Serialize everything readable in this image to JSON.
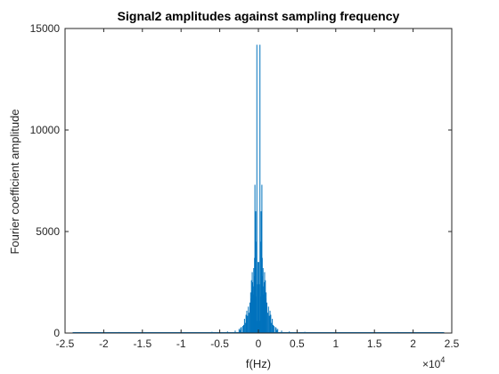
{
  "chart_data": {
    "type": "line",
    "title": "Signal2 amplitudes against sampling frequency",
    "xlabel": "f(Hz)",
    "ylabel": "Fourier coefficient amplitude",
    "x_exponent_label": "×10",
    "x_exponent_power": "4",
    "xlim": [
      -25000,
      25000
    ],
    "ylim": [
      0,
      15000
    ],
    "x_ticks": [
      -25000,
      -20000,
      -15000,
      -10000,
      -5000,
      0,
      5000,
      10000,
      15000,
      20000,
      25000
    ],
    "x_tick_labels": [
      "-2.5",
      "-2",
      "-1.5",
      "-1",
      "-0.5",
      "0",
      "0.5",
      "1",
      "1.5",
      "2",
      "2.5"
    ],
    "y_ticks": [
      0,
      5000,
      10000,
      15000
    ],
    "y_tick_labels": [
      "0",
      "5000",
      "10000",
      "15000"
    ],
    "grid": false,
    "line_color": "#0072BD",
    "series": [
      {
        "x": [
          -24000,
          -22000,
          -20000,
          -18000,
          -16000,
          -14000,
          -12000,
          -10000,
          -8000,
          -6000,
          -4000,
          -3000,
          -2500,
          -2400,
          -2300,
          -2200,
          -2000,
          -1900,
          -1800,
          -1700,
          -1600,
          -1500,
          -1400,
          -1300,
          -1200,
          -1100,
          -1000,
          -950,
          -900,
          -850,
          -800,
          -750,
          -700,
          -650,
          -600,
          -550,
          -500,
          -450,
          -400,
          -350,
          -300,
          -250,
          -200,
          -150,
          -100,
          -50,
          0,
          50,
          100,
          150,
          200,
          250,
          300,
          350,
          400,
          450,
          500,
          550,
          600,
          650,
          700,
          750,
          800,
          850,
          900,
          950,
          1000,
          1100,
          1200,
          1300,
          1400,
          1500,
          1600,
          1700,
          1800,
          1900,
          2000,
          2200,
          2300,
          2400,
          2500,
          3000,
          4000,
          6000,
          8000,
          10000,
          12000,
          14000,
          16000,
          18000,
          20000,
          22000,
          24000
        ],
        "values": [
          30,
          40,
          30,
          50,
          30,
          40,
          30,
          50,
          40,
          60,
          80,
          120,
          200,
          150,
          250,
          300,
          350,
          400,
          700,
          500,
          900,
          1100,
          850,
          1300,
          1000,
          1500,
          2000,
          1700,
          2600,
          2100,
          3000,
          2500,
          2300,
          1900,
          3200,
          2800,
          3700,
          7300,
          5200,
          6000,
          4500,
          1800,
          14200,
          600,
          2400,
          3500,
          3100,
          3500,
          2400,
          600,
          14200,
          1800,
          4500,
          6000,
          5200,
          7300,
          3700,
          2800,
          3200,
          1900,
          2300,
          2500,
          3000,
          2100,
          2600,
          1700,
          2000,
          1500,
          1000,
          1300,
          850,
          1100,
          900,
          500,
          700,
          400,
          350,
          300,
          250,
          150,
          200,
          120,
          80,
          60,
          40,
          50,
          30,
          40,
          30,
          50,
          30,
          40,
          30
        ]
      }
    ]
  }
}
